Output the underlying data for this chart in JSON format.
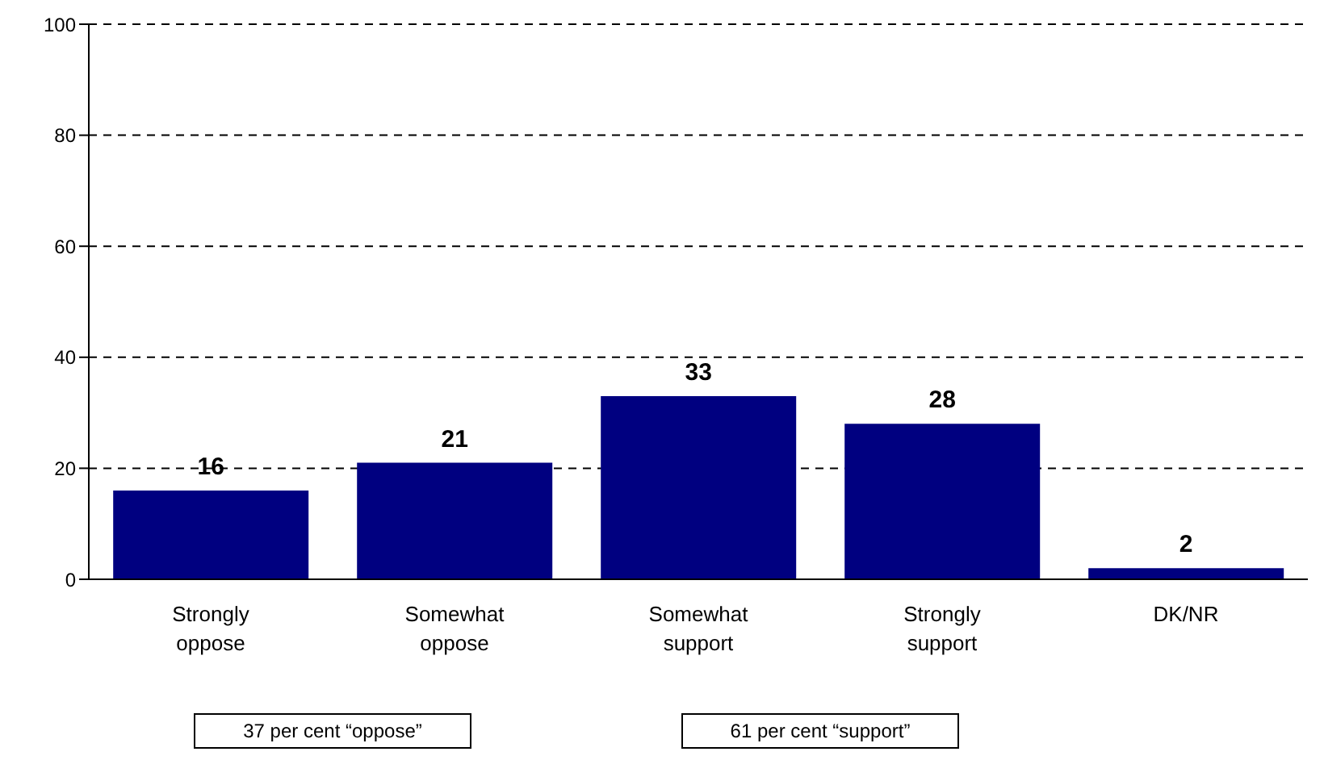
{
  "chart_data": {
    "type": "bar",
    "categories": [
      "Strongly oppose",
      "Somewhat oppose",
      "Somewhat support",
      "Strongly support",
      "DK/NR"
    ],
    "values": [
      16,
      21,
      33,
      28,
      2
    ],
    "color": "#000080",
    "ylim": [
      0,
      100
    ],
    "yticks": [
      0,
      20,
      40,
      60,
      80,
      100
    ],
    "grid": "y",
    "data_labels": true,
    "annotations": [
      "37 per cent “oppose”",
      "61 per cent “support”"
    ]
  }
}
